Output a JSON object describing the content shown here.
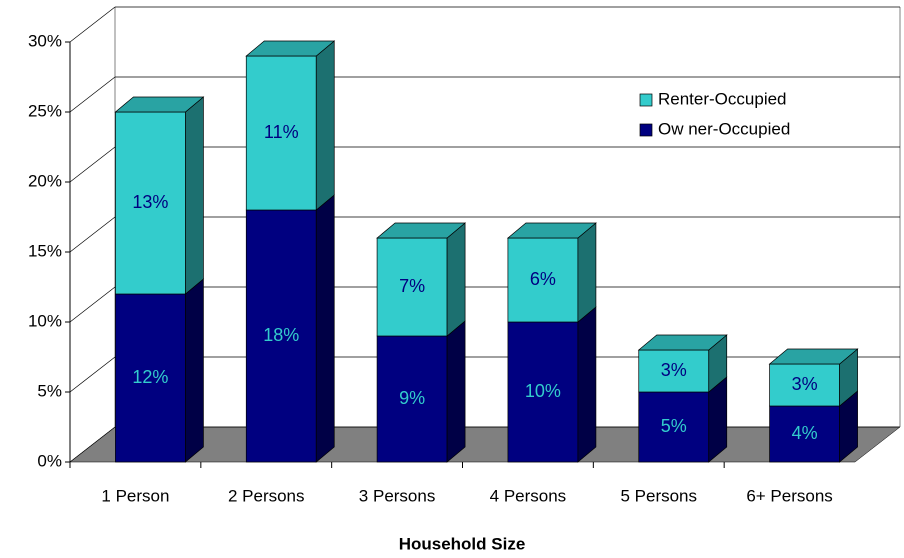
{
  "chart_data": {
    "type": "bar3d_stacked",
    "x_label": "Household Size",
    "categories": [
      "1 Person",
      "2 Persons",
      "3 Persons",
      "4 Persons",
      "5 Persons",
      "6+ Persons"
    ],
    "series": [
      {
        "name": "Ow ner-Occupied",
        "color": "#000080",
        "label_color": "#33cccc",
        "values": [
          12,
          18,
          9,
          10,
          5,
          4
        ],
        "value_labels": [
          "12%",
          "18%",
          "9%",
          "10%",
          "5%",
          "4%"
        ]
      },
      {
        "name": "Renter-Occupied",
        "color": "#33cccc",
        "label_color": "#000080",
        "values": [
          13,
          11,
          7,
          6,
          3,
          3
        ],
        "value_labels": [
          "13%",
          "11%",
          "7%",
          "6%",
          "3%",
          "3%"
        ]
      }
    ],
    "ylim": [
      0,
      30
    ],
    "yticks": [
      {
        "value": 0,
        "label": "0%"
      },
      {
        "value": 5,
        "label": "5%"
      },
      {
        "value": 10,
        "label": "10%"
      },
      {
        "value": 15,
        "label": "15%"
      },
      {
        "value": 20,
        "label": "20%"
      },
      {
        "value": 25,
        "label": "25%"
      },
      {
        "value": 30,
        "label": "30%"
      }
    ],
    "grid": true
  }
}
